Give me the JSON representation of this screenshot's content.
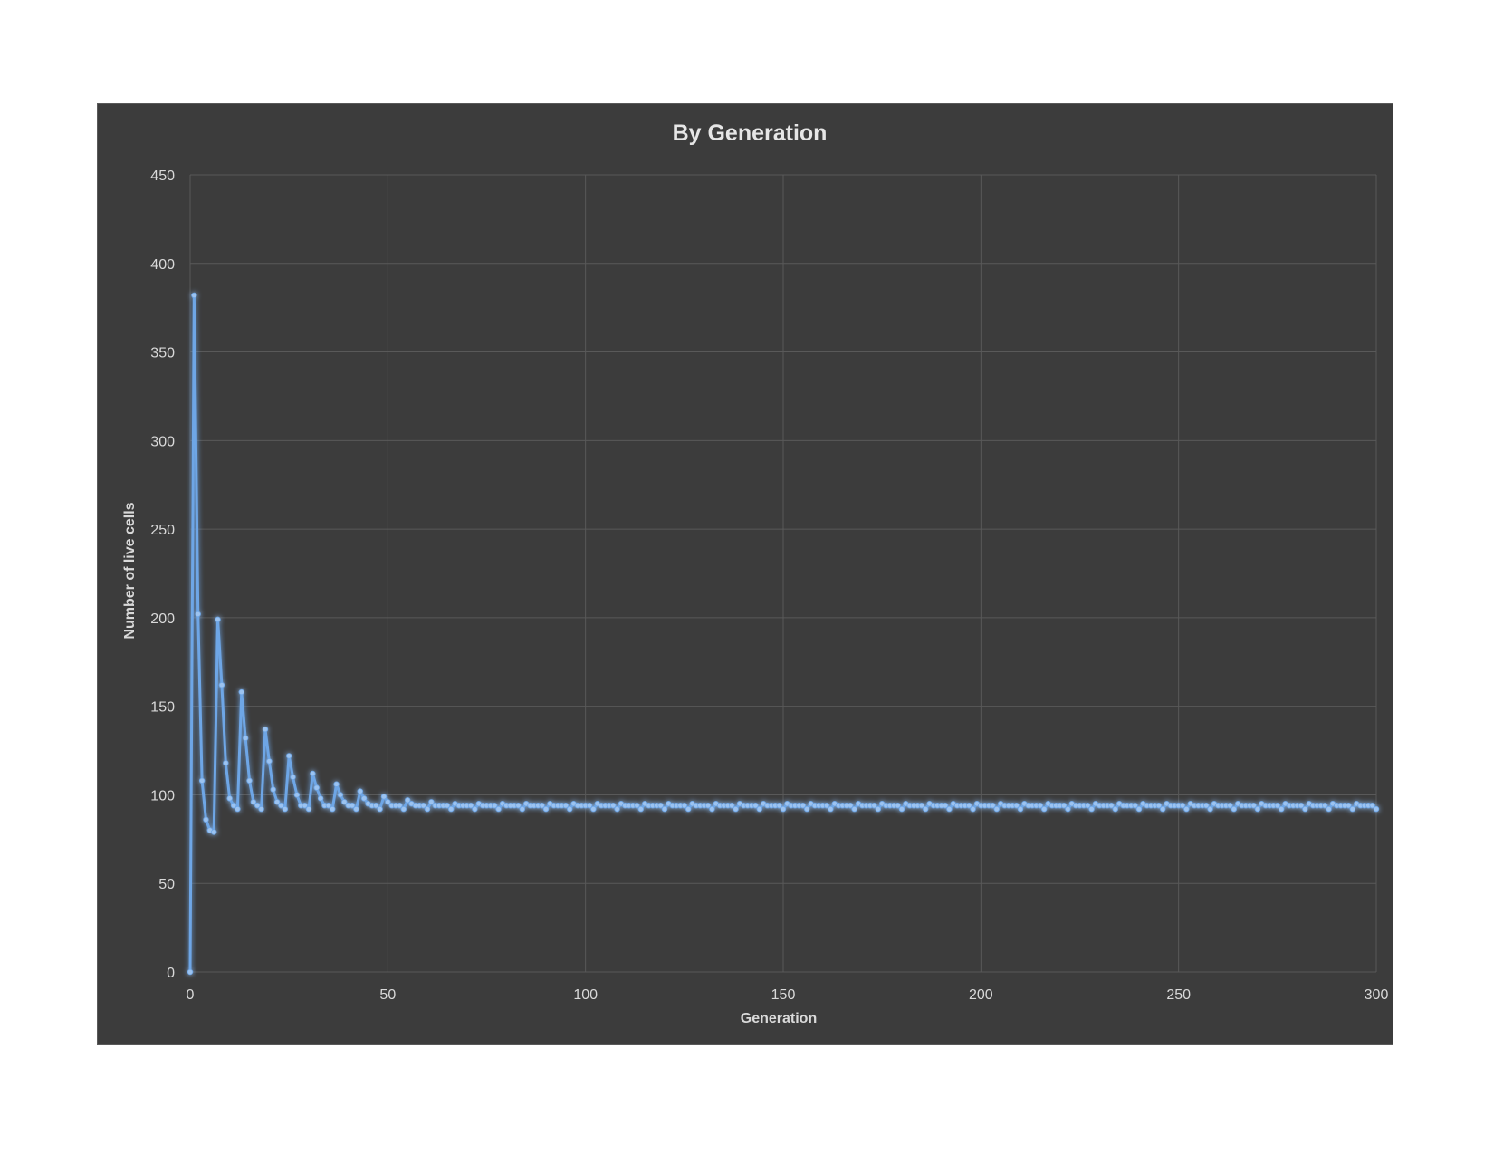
{
  "chart_data": {
    "type": "line",
    "title": "By Generation",
    "xlabel": "Generation",
    "ylabel": "Number of live cells",
    "xlim": [
      0,
      300
    ],
    "ylim": [
      0,
      450
    ],
    "x_ticks": [
      "0",
      "50",
      "100",
      "150",
      "200",
      "250",
      "300"
    ],
    "y_ticks": [
      "0",
      "50",
      "100",
      "150",
      "200",
      "250",
      "300",
      "350",
      "400",
      "450"
    ],
    "grid": true,
    "legend": "none",
    "markers": true,
    "series": [
      {
        "values_head": [
          0,
          382,
          202,
          108,
          86,
          80,
          79,
          199,
          162,
          118,
          98,
          94,
          92,
          158,
          132,
          108,
          96,
          94,
          92,
          137,
          119,
          103,
          96,
          94,
          92,
          122,
          110,
          100,
          94,
          94,
          92,
          112,
          104,
          98,
          94,
          94,
          92,
          106,
          100,
          96,
          94,
          94,
          92,
          102,
          98,
          95,
          94,
          94,
          92,
          99,
          96,
          94,
          94,
          94,
          92,
          97,
          95,
          94,
          94,
          94,
          92,
          96,
          94,
          94,
          94,
          94,
          92
        ],
        "steady_cycle": [
          95,
          94,
          94,
          94,
          94,
          92
        ],
        "end_generation": 300
      }
    ],
    "colors": {
      "background": "#3c3c3c",
      "gridline": "#595959",
      "axis_text": "#d9d9d9",
      "title_text": "#e6e6e6",
      "series_line": "#6ea6e6",
      "series_marker": "#9cc3f0",
      "series_glow": "#5b9bd5"
    }
  }
}
